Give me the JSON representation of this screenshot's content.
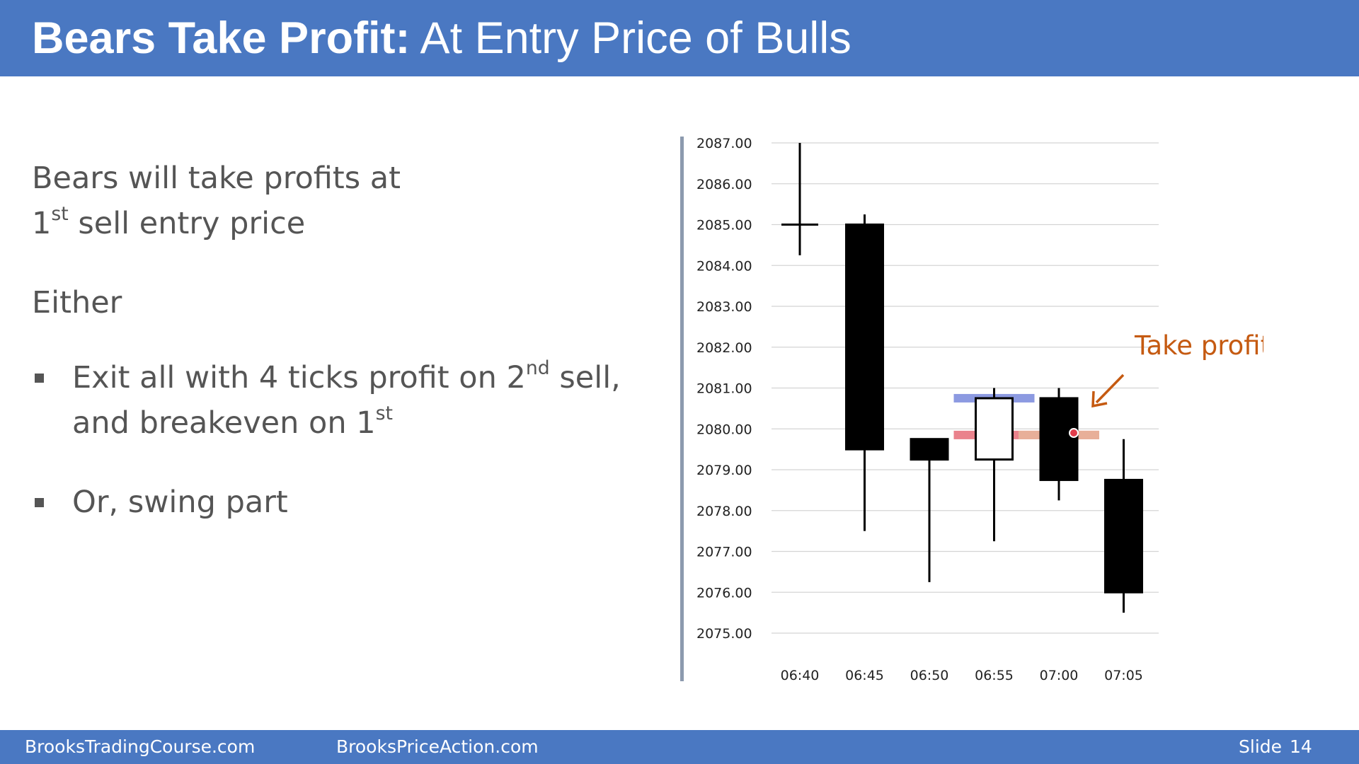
{
  "slide": {
    "title_bold": "Bears Take Profit:",
    "title_rest": " At Entry Price of Bulls",
    "lines": {
      "l1": "Bears will take profits at",
      "l2_num": "1",
      "l2_sup": "st",
      "l2_rest": " sell entry price",
      "either": "Either",
      "b1_pre": "Exit all with 4 ticks profit on 2",
      "b1_sup": "nd",
      "b1_post": " sell,",
      "b1_line2": "and breakeven on 1",
      "b1_sup2": "st",
      "b2": "Or, swing part"
    }
  },
  "footer": {
    "left": "BrooksTradingCourse.com",
    "center": "BrooksPriceAction.com",
    "slide_label": "Slide",
    "slide_number": "14"
  },
  "chart_data": {
    "type": "candlestick",
    "title": "",
    "xlabel": "",
    "ylabel": "",
    "ylim": [
      2075,
      2087
    ],
    "y_ticks": [
      "2087.00",
      "2086.00",
      "2085.00",
      "2084.00",
      "2083.00",
      "2082.00",
      "2081.00",
      "2080.00",
      "2079.00",
      "2078.00",
      "2077.00",
      "2076.00",
      "2075.00"
    ],
    "grid": true,
    "x": [
      "06:40",
      "06:45",
      "06:50",
      "06:55",
      "07:00",
      "07:05"
    ],
    "candles": [
      {
        "time": "06:40",
        "open": 2085.0,
        "high": 2087.0,
        "low": 2084.25,
        "close": 2085.0
      },
      {
        "time": "06:45",
        "open": 2085.0,
        "high": 2085.25,
        "low": 2077.5,
        "close": 2079.5
      },
      {
        "time": "06:50",
        "open": 2079.75,
        "high": 2079.75,
        "low": 2076.25,
        "close": 2079.25
      },
      {
        "time": "06:55",
        "open": 2079.25,
        "high": 2081.0,
        "low": 2077.25,
        "close": 2080.75
      },
      {
        "time": "07:00",
        "open": 2080.75,
        "high": 2081.0,
        "low": 2078.25,
        "close": 2078.75
      },
      {
        "time": "07:05",
        "open": 2078.75,
        "high": 2079.75,
        "low": 2075.5,
        "close": 2076.0
      }
    ],
    "levels": [
      {
        "price": 2080.75,
        "from": "06:55",
        "to": "06:55",
        "color": "#7f8fde"
      },
      {
        "price": 2079.85,
        "from": "06:55",
        "to": "07:00",
        "color": "#e8747f"
      },
      {
        "price": 2079.85,
        "from": "07:00",
        "to": "07:00",
        "color": "#e8b49a"
      }
    ],
    "annotation": {
      "text": "Take profit",
      "color": "#c55a11",
      "points_to": "07:00"
    }
  }
}
